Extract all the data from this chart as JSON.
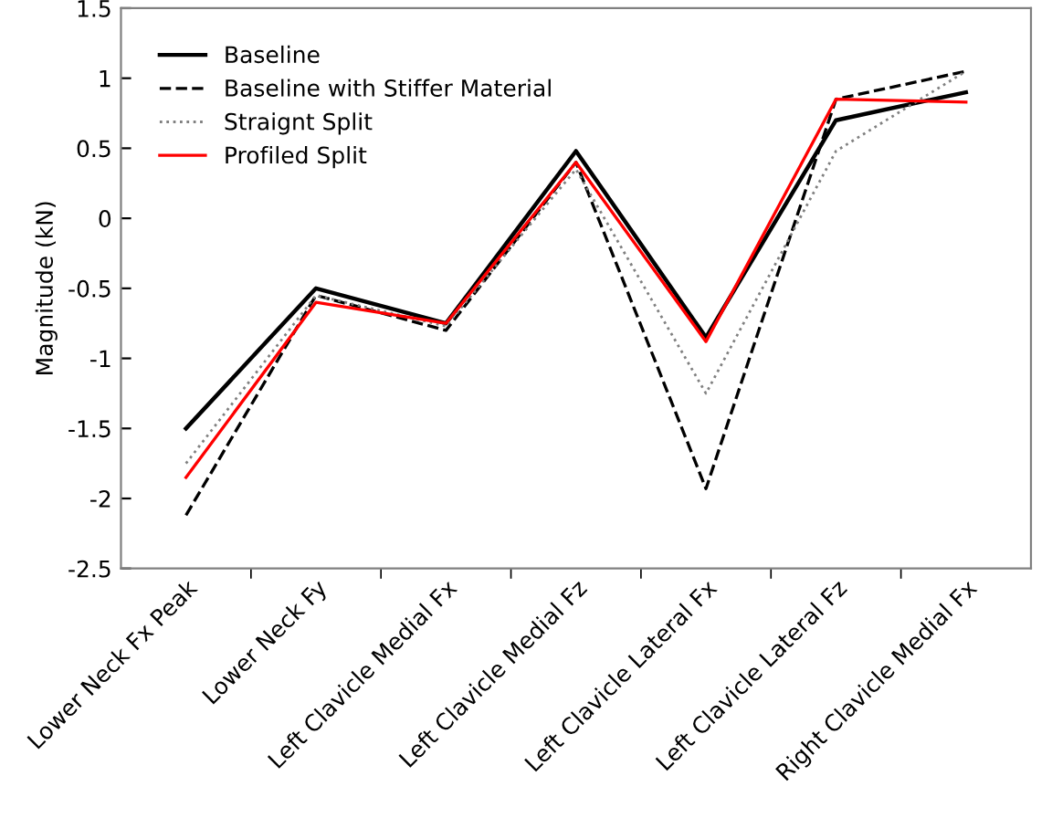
{
  "chart_data": {
    "type": "line",
    "ylabel": "Magnitude (kN)",
    "categories": [
      "Lower Neck Fx Peak",
      "Lower Neck Fy",
      "Left Clavicle Medial Fx",
      "Left Clavicle Medial Fz",
      "Left Clavicle Lateral Fx",
      "Left Clavicle Lateral Fz",
      "Right Clavicle Medial Fx"
    ],
    "series": [
      {
        "name": "Baseline",
        "color": "#000000",
        "line_style": "solid",
        "values": [
          -1.5,
          -0.5,
          -0.75,
          0.48,
          -0.85,
          0.7,
          0.9
        ]
      },
      {
        "name": "Baseline with Stiffer Material",
        "color": "#000000",
        "line_style": "dashed",
        "values": [
          -2.12,
          -0.55,
          -0.8,
          0.4,
          -1.93,
          0.85,
          1.05
        ]
      },
      {
        "name": "Straignt Split",
        "color": "#808080",
        "line_style": "dotted",
        "values": [
          -1.75,
          -0.55,
          -0.77,
          0.35,
          -1.25,
          0.48,
          1.05
        ]
      },
      {
        "name": "Profiled Split",
        "color": "#ff0000",
        "line_style": "solid",
        "values": [
          -1.85,
          -0.6,
          -0.75,
          0.4,
          -0.88,
          0.85,
          0.83
        ]
      }
    ],
    "ylim": [
      -2.5,
      1.5
    ],
    "yticks": [
      -2.5,
      -2,
      -1.5,
      -1,
      -0.5,
      0,
      0.5,
      1,
      1.5
    ],
    "grid": false,
    "legend": "top left",
    "marker": "none"
  }
}
